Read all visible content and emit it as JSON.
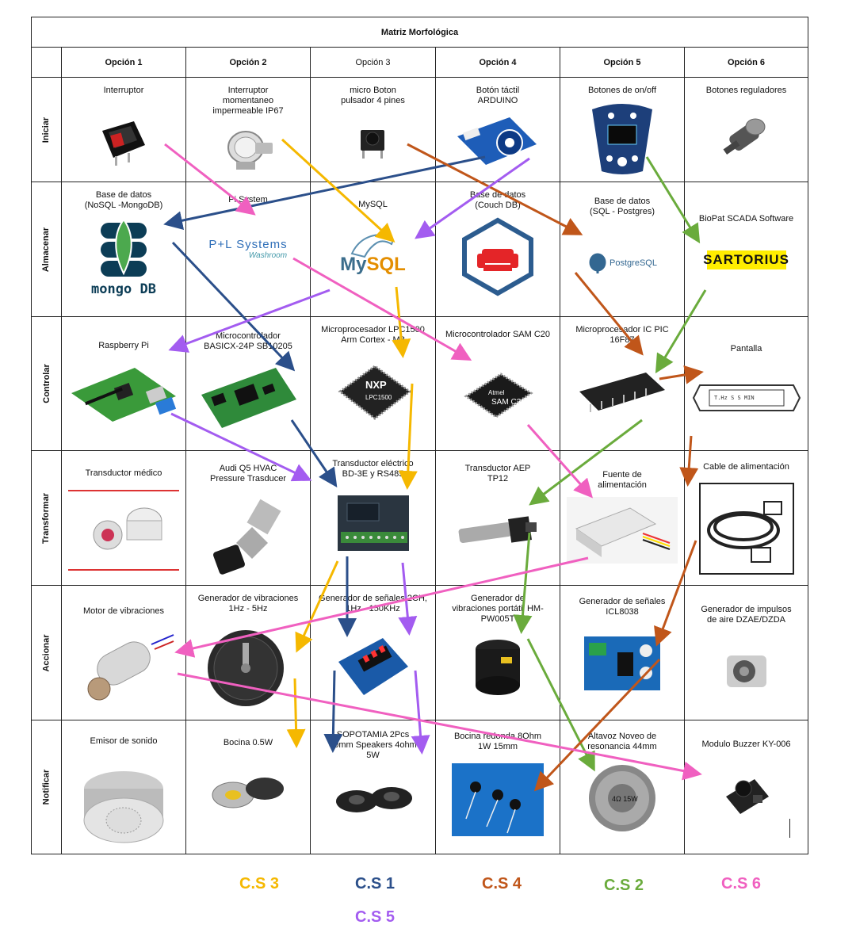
{
  "title": "Matriz Morfológica",
  "options": [
    "Opción 1",
    "Opción 2",
    "Opción 3",
    "Opción 4",
    "Opción 5",
    "Opción 6"
  ],
  "rows": [
    {
      "label": "Iniciar",
      "cells": [
        "Interruptor",
        "Interruptor\nmomentaneo\nimpermeable IP67",
        "micro Boton\npulsador 4 pines",
        "Botón táctil\nARDUINO",
        "Botones de on/off",
        "Botones reguladores"
      ]
    },
    {
      "label": "Almacenar",
      "cells": [
        "Base de datos\n(NoSQL -MongoDB)",
        "Pi System",
        "MySQL",
        "Base de datos\n(Couch DB)",
        "Base de datos\n(SQL - Postgres)",
        "BioPat SCADA Software"
      ]
    },
    {
      "label": "Controlar",
      "cells": [
        "Raspberry Pi",
        "Microcontrolador\nBASICX-24P SB10205",
        "Microprocesador LPC1500\nArm Cortex - M3",
        "Microcontrolador SAM C20",
        "Microprocesador IC PIC\n16F87",
        "Pantalla"
      ]
    },
    {
      "label": "Transformar",
      "cells": [
        "Transductor médico",
        "Audi Q5 HVAC\nPressure Trasducer",
        "Transductor eléctrico\nBD-3E y RS485",
        "Transductor AEP\nTP12",
        "Fuente de\nalimentación",
        "Cable de alimentación"
      ]
    },
    {
      "label": "Accionar",
      "cells": [
        "Motor de vibraciones",
        "Generador de vibraciones\n1Hz - 5Hz",
        "Generador de señales 2CH,\n1Hz - 150KHz",
        "Generador de\nvibraciones portátil HM-\nPW005T",
        "Generador de señales\nICL8038",
        "Generador de impulsos\nde aire DZAE/DZDA"
      ]
    },
    {
      "label": "Notificar",
      "cells": [
        "Emisor de sonido",
        "Bocina 0.5W",
        "SOPOTAMIA 2Pcs\n40mm Speakers 4ohm\n5W",
        "Bocina redonda 8Ohm\n1W 15mm",
        "Altavoz Noveo de\nresonancia 44mm",
        "Modulo Buzzer KY-006"
      ]
    }
  ],
  "logos": {
    "mongodb": "mongo DB",
    "pl_systems": "P+L Systems",
    "pl_systems_sub": "Washroom",
    "mysql_my": "My",
    "mysql_sql": "SQL",
    "postgres": "PostgreSQL",
    "sartorius": "SARTORIUS",
    "nxp": "NXP",
    "lpc": "LPC1500",
    "atmel": "Atmel",
    "samc20": "SAM C20",
    "display": "T.Hz  S  S MIN",
    "speaker_label": "4Ω 15W"
  },
  "legend": [
    {
      "text": "C.S 3",
      "color": "#f5b800"
    },
    {
      "text": "C.S 1",
      "color": "#2b4f8a"
    },
    {
      "text": "C.S 4",
      "color": "#c0561a"
    },
    {
      "text": "C.S 2",
      "color": "#6aab3c"
    },
    {
      "text": "C.S 6",
      "color": "#f060c0"
    },
    {
      "text": "C.S 5",
      "color": "#a35cf0"
    }
  ],
  "colors": {
    "cs1": "#2b4f8a",
    "cs2": "#6aab3c",
    "cs3": "#f5b800",
    "cs4": "#c0561a",
    "cs5": "#a35cf0",
    "cs6": "#f060c0"
  }
}
